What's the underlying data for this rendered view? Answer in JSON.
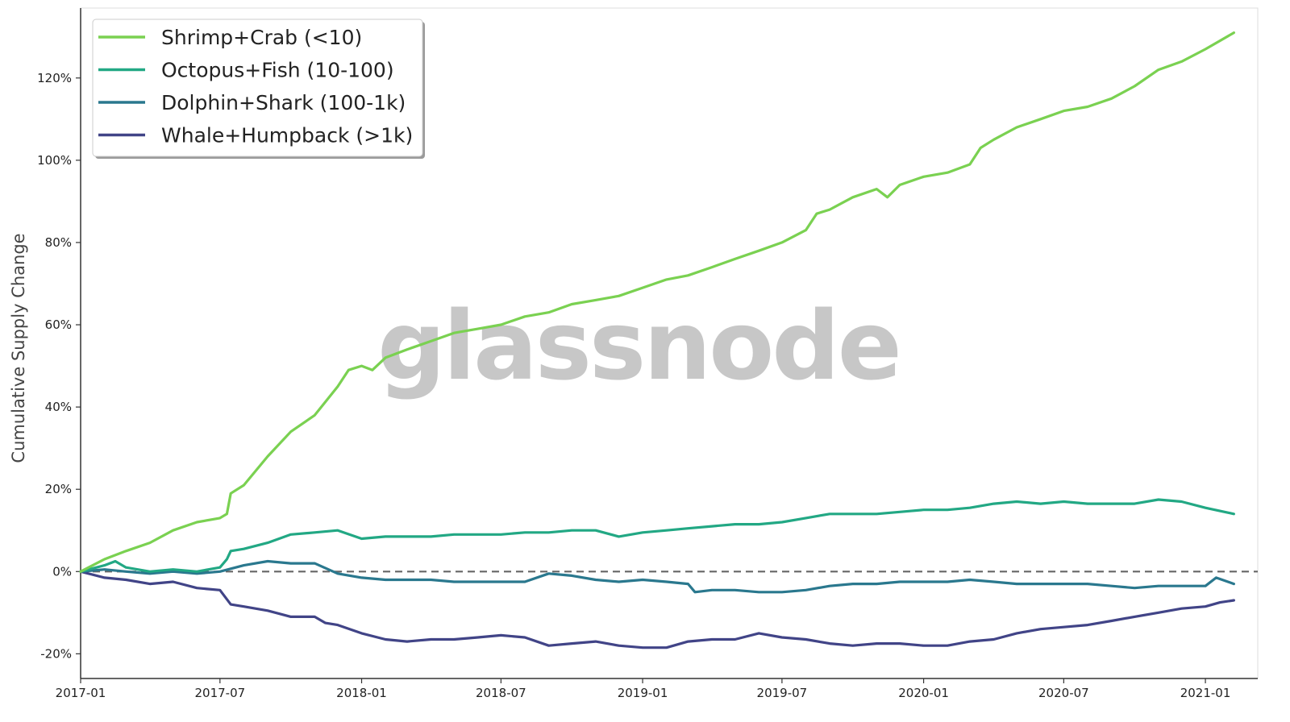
{
  "watermark": "glassnode",
  "chart_data": {
    "type": "line",
    "ylabel": "Cumulative Supply Change",
    "xlabel": "",
    "x_axis_type": "date",
    "xlim": [
      "2017-01-01",
      "2021-03-10"
    ],
    "ylim": [
      -26,
      137
    ],
    "x_ticks": [
      "2017-01",
      "2017-07",
      "2018-01",
      "2018-07",
      "2019-01",
      "2019-07",
      "2020-01",
      "2020-07",
      "2021-01"
    ],
    "y_ticks": [
      -20,
      0,
      20,
      40,
      60,
      80,
      100,
      120
    ],
    "y_tick_labels": [
      "-20%",
      "0%",
      "20%",
      "40%",
      "60%",
      "80%",
      "100%",
      "120%"
    ],
    "y_unit": "%",
    "reference_line": {
      "y": 0,
      "style": "dashed",
      "color": "#666666"
    },
    "grid": false,
    "legend_position": "top-left",
    "series": [
      {
        "name": "Shrimp+Crab (<10)",
        "color": "#7ad151",
        "points": [
          [
            "2017-01-01",
            0
          ],
          [
            "2017-02-01",
            3
          ],
          [
            "2017-03-01",
            5
          ],
          [
            "2017-04-01",
            7
          ],
          [
            "2017-05-01",
            10
          ],
          [
            "2017-06-01",
            12
          ],
          [
            "2017-07-01",
            13
          ],
          [
            "2017-07-10",
            14
          ],
          [
            "2017-07-15",
            19
          ],
          [
            "2017-08-01",
            21
          ],
          [
            "2017-09-01",
            28
          ],
          [
            "2017-10-01",
            34
          ],
          [
            "2017-11-01",
            38
          ],
          [
            "2017-12-01",
            45
          ],
          [
            "2017-12-15",
            49
          ],
          [
            "2018-01-01",
            50
          ],
          [
            "2018-01-15",
            49
          ],
          [
            "2018-02-01",
            52
          ],
          [
            "2018-03-01",
            54
          ],
          [
            "2018-04-01",
            56
          ],
          [
            "2018-05-01",
            58
          ],
          [
            "2018-06-01",
            59
          ],
          [
            "2018-07-01",
            60
          ],
          [
            "2018-08-01",
            62
          ],
          [
            "2018-09-01",
            63
          ],
          [
            "2018-10-01",
            65
          ],
          [
            "2018-11-01",
            66
          ],
          [
            "2018-12-01",
            67
          ],
          [
            "2019-01-01",
            69
          ],
          [
            "2019-02-01",
            71
          ],
          [
            "2019-03-01",
            72
          ],
          [
            "2019-04-01",
            74
          ],
          [
            "2019-05-01",
            76
          ],
          [
            "2019-06-01",
            78
          ],
          [
            "2019-07-01",
            80
          ],
          [
            "2019-08-01",
            83
          ],
          [
            "2019-08-15",
            87
          ],
          [
            "2019-09-01",
            88
          ],
          [
            "2019-10-01",
            91
          ],
          [
            "2019-11-01",
            93
          ],
          [
            "2019-11-15",
            91
          ],
          [
            "2019-12-01",
            94
          ],
          [
            "2020-01-01",
            96
          ],
          [
            "2020-02-01",
            97
          ],
          [
            "2020-03-01",
            99
          ],
          [
            "2020-03-15",
            103
          ],
          [
            "2020-04-01",
            105
          ],
          [
            "2020-05-01",
            108
          ],
          [
            "2020-06-01",
            110
          ],
          [
            "2020-07-01",
            112
          ],
          [
            "2020-08-01",
            113
          ],
          [
            "2020-09-01",
            115
          ],
          [
            "2020-10-01",
            118
          ],
          [
            "2020-11-01",
            122
          ],
          [
            "2020-12-01",
            124
          ],
          [
            "2021-01-01",
            127
          ],
          [
            "2021-02-07",
            131
          ]
        ]
      },
      {
        "name": "Octopus+Fish (10-100)",
        "color": "#22a884",
        "points": [
          [
            "2017-01-01",
            0
          ],
          [
            "2017-02-01",
            1.5
          ],
          [
            "2017-02-15",
            2.5
          ],
          [
            "2017-03-01",
            1
          ],
          [
            "2017-04-01",
            0
          ],
          [
            "2017-05-01",
            0.5
          ],
          [
            "2017-06-01",
            0
          ],
          [
            "2017-07-01",
            1
          ],
          [
            "2017-07-10",
            3
          ],
          [
            "2017-07-15",
            5
          ],
          [
            "2017-08-01",
            5.5
          ],
          [
            "2017-09-01",
            7
          ],
          [
            "2017-10-01",
            9
          ],
          [
            "2017-11-01",
            9.5
          ],
          [
            "2017-12-01",
            10
          ],
          [
            "2018-01-01",
            8
          ],
          [
            "2018-02-01",
            8.5
          ],
          [
            "2018-03-01",
            8.5
          ],
          [
            "2018-04-01",
            8.5
          ],
          [
            "2018-05-01",
            9
          ],
          [
            "2018-06-01",
            9
          ],
          [
            "2018-07-01",
            9
          ],
          [
            "2018-08-01",
            9.5
          ],
          [
            "2018-09-01",
            9.5
          ],
          [
            "2018-10-01",
            10
          ],
          [
            "2018-11-01",
            10
          ],
          [
            "2018-12-01",
            8.5
          ],
          [
            "2019-01-01",
            9.5
          ],
          [
            "2019-02-01",
            10
          ],
          [
            "2019-03-01",
            10.5
          ],
          [
            "2019-04-01",
            11
          ],
          [
            "2019-05-01",
            11.5
          ],
          [
            "2019-06-01",
            11.5
          ],
          [
            "2019-07-01",
            12
          ],
          [
            "2019-08-01",
            13
          ],
          [
            "2019-09-01",
            14
          ],
          [
            "2019-10-01",
            14
          ],
          [
            "2019-11-01",
            14
          ],
          [
            "2019-12-01",
            14.5
          ],
          [
            "2020-01-01",
            15
          ],
          [
            "2020-02-01",
            15
          ],
          [
            "2020-03-01",
            15.5
          ],
          [
            "2020-04-01",
            16.5
          ],
          [
            "2020-05-01",
            17
          ],
          [
            "2020-06-01",
            16.5
          ],
          [
            "2020-07-01",
            17
          ],
          [
            "2020-08-01",
            16.5
          ],
          [
            "2020-09-01",
            16.5
          ],
          [
            "2020-10-01",
            16.5
          ],
          [
            "2020-11-01",
            17.5
          ],
          [
            "2020-12-01",
            17
          ],
          [
            "2021-01-01",
            15.5
          ],
          [
            "2021-02-07",
            14
          ]
        ]
      },
      {
        "name": "Dolphin+Shark (100-1k)",
        "color": "#2a788e",
        "points": [
          [
            "2017-01-01",
            0
          ],
          [
            "2017-02-01",
            0.5
          ],
          [
            "2017-03-01",
            0
          ],
          [
            "2017-04-01",
            -0.5
          ],
          [
            "2017-05-01",
            0
          ],
          [
            "2017-06-01",
            -0.5
          ],
          [
            "2017-07-01",
            0
          ],
          [
            "2017-08-01",
            1.5
          ],
          [
            "2017-09-01",
            2.5
          ],
          [
            "2017-10-01",
            2
          ],
          [
            "2017-11-01",
            2
          ],
          [
            "2017-12-01",
            -0.5
          ],
          [
            "2018-01-01",
            -1.5
          ],
          [
            "2018-02-01",
            -2
          ],
          [
            "2018-03-01",
            -2
          ],
          [
            "2018-04-01",
            -2
          ],
          [
            "2018-05-01",
            -2.5
          ],
          [
            "2018-06-01",
            -2.5
          ],
          [
            "2018-07-01",
            -2.5
          ],
          [
            "2018-08-01",
            -2.5
          ],
          [
            "2018-09-01",
            -0.5
          ],
          [
            "2018-10-01",
            -1
          ],
          [
            "2018-11-01",
            -2
          ],
          [
            "2018-12-01",
            -2.5
          ],
          [
            "2019-01-01",
            -2
          ],
          [
            "2019-02-01",
            -2.5
          ],
          [
            "2019-03-01",
            -3
          ],
          [
            "2019-03-10",
            -5
          ],
          [
            "2019-04-01",
            -4.5
          ],
          [
            "2019-05-01",
            -4.5
          ],
          [
            "2019-06-01",
            -5
          ],
          [
            "2019-07-01",
            -5
          ],
          [
            "2019-08-01",
            -4.5
          ],
          [
            "2019-09-01",
            -3.5
          ],
          [
            "2019-10-01",
            -3
          ],
          [
            "2019-11-01",
            -3
          ],
          [
            "2019-12-01",
            -2.5
          ],
          [
            "2020-01-01",
            -2.5
          ],
          [
            "2020-02-01",
            -2.5
          ],
          [
            "2020-03-01",
            -2
          ],
          [
            "2020-04-01",
            -2.5
          ],
          [
            "2020-05-01",
            -3
          ],
          [
            "2020-06-01",
            -3
          ],
          [
            "2020-07-01",
            -3
          ],
          [
            "2020-08-01",
            -3
          ],
          [
            "2020-09-01",
            -3.5
          ],
          [
            "2020-10-01",
            -4
          ],
          [
            "2020-11-01",
            -3.5
          ],
          [
            "2020-12-01",
            -3.5
          ],
          [
            "2021-01-01",
            -3.5
          ],
          [
            "2021-01-15",
            -1.5
          ],
          [
            "2021-02-07",
            -3
          ]
        ]
      },
      {
        "name": "Whale+Humpback (>1k)",
        "color": "#414487",
        "points": [
          [
            "2017-01-01",
            0
          ],
          [
            "2017-02-01",
            -1.5
          ],
          [
            "2017-03-01",
            -2
          ],
          [
            "2017-04-01",
            -3
          ],
          [
            "2017-05-01",
            -2.5
          ],
          [
            "2017-06-01",
            -4
          ],
          [
            "2017-07-01",
            -4.5
          ],
          [
            "2017-07-15",
            -8
          ],
          [
            "2017-08-01",
            -8.5
          ],
          [
            "2017-09-01",
            -9.5
          ],
          [
            "2017-10-01",
            -11
          ],
          [
            "2017-11-01",
            -11
          ],
          [
            "2017-11-15",
            -12.5
          ],
          [
            "2017-12-01",
            -13
          ],
          [
            "2018-01-01",
            -15
          ],
          [
            "2018-02-01",
            -16.5
          ],
          [
            "2018-03-01",
            -17
          ],
          [
            "2018-04-01",
            -16.5
          ],
          [
            "2018-05-01",
            -16.5
          ],
          [
            "2018-06-01",
            -16
          ],
          [
            "2018-07-01",
            -15.5
          ],
          [
            "2018-08-01",
            -16
          ],
          [
            "2018-09-01",
            -18
          ],
          [
            "2018-10-01",
            -17.5
          ],
          [
            "2018-11-01",
            -17
          ],
          [
            "2018-12-01",
            -18
          ],
          [
            "2019-01-01",
            -18.5
          ],
          [
            "2019-02-01",
            -18.5
          ],
          [
            "2019-03-01",
            -17
          ],
          [
            "2019-04-01",
            -16.5
          ],
          [
            "2019-05-01",
            -16.5
          ],
          [
            "2019-06-01",
            -15
          ],
          [
            "2019-07-01",
            -16
          ],
          [
            "2019-08-01",
            -16.5
          ],
          [
            "2019-09-01",
            -17.5
          ],
          [
            "2019-10-01",
            -18
          ],
          [
            "2019-11-01",
            -17.5
          ],
          [
            "2019-12-01",
            -17.5
          ],
          [
            "2020-01-01",
            -18
          ],
          [
            "2020-02-01",
            -18
          ],
          [
            "2020-03-01",
            -17
          ],
          [
            "2020-04-01",
            -16.5
          ],
          [
            "2020-05-01",
            -15
          ],
          [
            "2020-06-01",
            -14
          ],
          [
            "2020-07-01",
            -13.5
          ],
          [
            "2020-08-01",
            -13
          ],
          [
            "2020-09-01",
            -12
          ],
          [
            "2020-10-01",
            -11
          ],
          [
            "2020-11-01",
            -10
          ],
          [
            "2020-12-01",
            -9
          ],
          [
            "2021-01-01",
            -8.5
          ],
          [
            "2021-01-20",
            -7.5
          ],
          [
            "2021-02-07",
            -7
          ]
        ]
      }
    ]
  }
}
